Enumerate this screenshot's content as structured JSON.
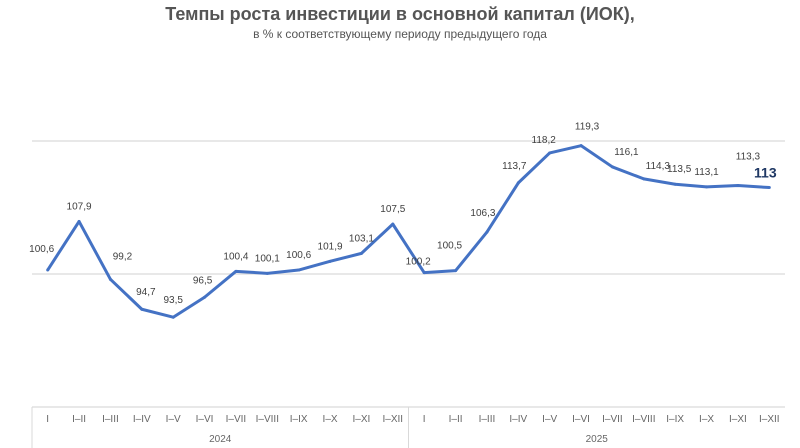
{
  "chart_data": {
    "type": "line",
    "title": "Темпы роста инвестиции в основной капитал (ИОК),",
    "subtitle": "в % к соответствующему периоду предыдущего года",
    "groups": [
      {
        "label": "2024",
        "categories": [
          "I",
          "I–II",
          "I–III",
          "I–IV",
          "I–V",
          "I–VI",
          "I–VII",
          "I–VIII",
          "I–IX",
          "I–X",
          "I–XI",
          "I–XII"
        ]
      },
      {
        "label": "2025",
        "categories": [
          "I",
          "I–II",
          "I–III",
          "I–IV",
          "I–V",
          "I–VI",
          "I–VII",
          "I–VIII",
          "I–IX",
          "I–X",
          "I–XI",
          "I–XII"
        ]
      }
    ],
    "series": [
      {
        "values": [
          100.6,
          107.9,
          99.2,
          94.7,
          93.5,
          96.5,
          100.4,
          100.1,
          100.6,
          101.9,
          103.1,
          107.5,
          100.2,
          100.5,
          106.3,
          113.7,
          118.2,
          119.3,
          116.1,
          114.3,
          113.5,
          113.1,
          113.3,
          113
        ],
        "data_labels": [
          "100,6",
          "107,9",
          "99,2",
          "94,7",
          "93,5",
          "96,5",
          "100,4",
          "100,1",
          "100,6",
          "101,9",
          "103,1",
          "107,5",
          "100,2",
          "100,5",
          "106,3",
          "113,7",
          "118,2",
          "119,3",
          "116,1",
          "114,3",
          "113,5",
          "113,1",
          "113,3",
          "113"
        ]
      }
    ],
    "ylim": [
      80,
      140
    ],
    "gridlines": [
      100,
      120
    ],
    "grid": true,
    "legend": "none",
    "colors": {
      "line": "#4472c4",
      "last_label": "#1f3864",
      "grid": "#d9d9d9"
    }
  }
}
